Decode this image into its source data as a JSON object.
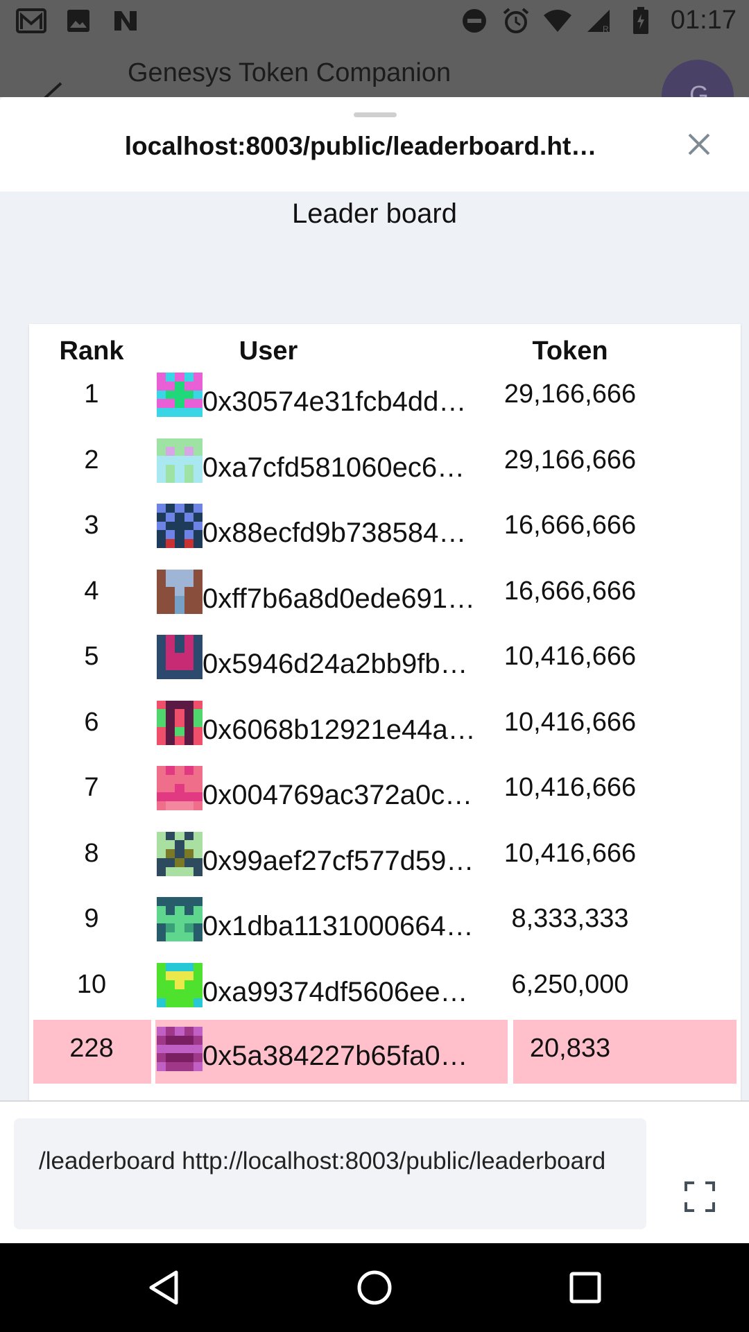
{
  "status_bar": {
    "time": "01:17",
    "left_icons": [
      "gmail-icon",
      "image-icon",
      "n-icon"
    ],
    "right_icons": [
      "do-not-disturb-icon",
      "alarm-icon",
      "wifi-icon",
      "signal-icon",
      "battery-icon"
    ]
  },
  "app": {
    "title": "Genesys Token Companion",
    "avatar_letter": "G"
  },
  "sheet": {
    "url": "localhost:8003/public/leaderboard.ht…",
    "close_icon": "close-icon"
  },
  "page": {
    "heading": "Leader board"
  },
  "table": {
    "columns": {
      "rank": "Rank",
      "user": "User",
      "token": "Token"
    },
    "rows": [
      {
        "rank": "1",
        "user": "0x30574e31fcb4dd…",
        "token": "29,166,666",
        "avatar": [
          "#3bd6e6",
          "#e85fd6",
          "#1fd87a"
        ]
      },
      {
        "rank": "2",
        "user": "0xa7cfd581060ec6…",
        "token": "29,166,666",
        "avatar": [
          "#9ee3a4",
          "#d7a6e4",
          "#a9e8f1"
        ]
      },
      {
        "rank": "3",
        "user": "0x88ecfd9b738584…",
        "token": "16,666,666",
        "avatar": [
          "#6d84e6",
          "#1f3b5a",
          "#c93232"
        ]
      },
      {
        "rank": "4",
        "user": "0xff7b6a8d0ede691…",
        "token": "16,666,666",
        "avatar": [
          "#8a4f3c",
          "#9fb5d6",
          "#77a0c6"
        ]
      },
      {
        "rank": "5",
        "user": "0x5946d24a2bb9fb…",
        "token": "10,416,666",
        "avatar": [
          "#2b4a6e",
          "#c62b74",
          "#3a5a80"
        ]
      },
      {
        "rank": "6",
        "user": "0x6068b12921e44a…",
        "token": "10,416,666",
        "avatar": [
          "#ef4f6a",
          "#5a1a44",
          "#4fd66c"
        ]
      },
      {
        "rank": "7",
        "user": "0x004769ac372a0c…",
        "token": "10,416,666",
        "avatar": [
          "#ef6f8a",
          "#e23a82",
          "#f2879e"
        ]
      },
      {
        "rank": "8",
        "user": "0x99aef27cf577d59…",
        "token": "10,416,666",
        "avatar": [
          "#a9e0a2",
          "#2e4a5e",
          "#7a7a26"
        ]
      },
      {
        "rank": "9",
        "user": "0x1dba1131000664…",
        "token": "8,333,333",
        "avatar": [
          "#275c6b",
          "#5fd68e",
          "#3aa07a"
        ]
      },
      {
        "rank": "10",
        "user": "0xa99374df5606ee…",
        "token": "6,250,000",
        "avatar": [
          "#4ee22e",
          "#eae84a",
          "#27c8d6"
        ]
      }
    ],
    "you_row": {
      "rank": "228",
      "user": "0x5a384227b65fa0…",
      "token": "20,833",
      "avatar": [
        "#a0388a",
        "#c05fc4",
        "#7a1f62"
      ],
      "highlight_color": "#ffc0cb"
    }
  },
  "composer": {
    "text": "/leaderboard http://localhost:8003/public/leaderboard",
    "expand_icon": "expand-icon"
  },
  "nav_bar": {
    "icons": [
      "back-icon",
      "home-icon",
      "recents-icon"
    ]
  }
}
